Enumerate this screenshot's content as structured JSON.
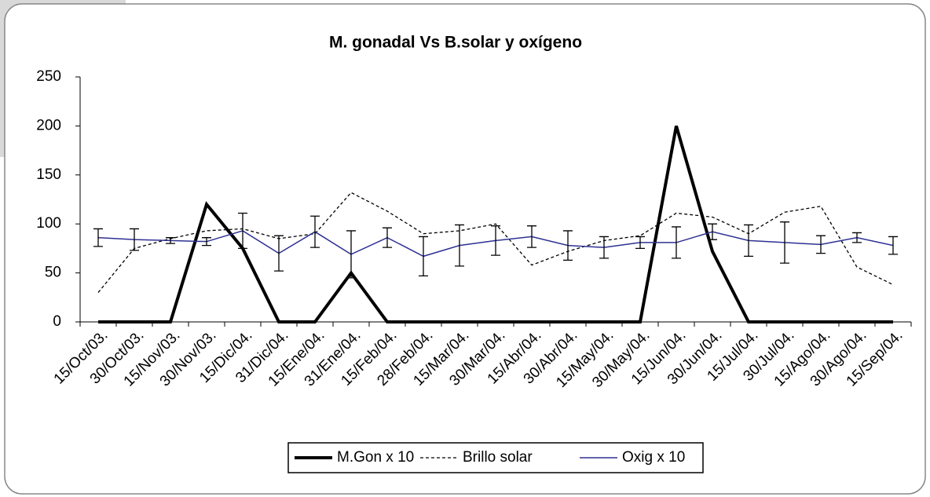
{
  "chart_data": {
    "type": "line",
    "title": "M. gonadal Vs  B.solar y oxígeno",
    "categories": [
      "15/Oct/03.",
      "30/Oct/03.",
      "15/Nov/03.",
      "30/Nov/03.",
      "15/Dic/04.",
      "31/Dic/04.",
      "15/Ene/04.",
      "31/Ene/04.",
      "15/Feb/04.",
      "28/Feb/04.",
      "15/Mar/04.",
      "30/Mar/04.",
      "15/Abr/04.",
      "30/Abr/04.",
      "15/May/04.",
      "30/May/04.",
      "15/Jun/04.",
      "30/Jun/04.",
      "15/Jul/04.",
      "30/Jul/04.",
      "15/Ago/04.",
      "30/Ago/04.",
      "15/Sep/04."
    ],
    "series": [
      {
        "name": "M.Gon x 10",
        "color": "#000000",
        "style": "solid",
        "width": 4,
        "values": [
          0,
          0,
          0,
          120,
          75,
          0,
          0,
          50,
          0,
          0,
          0,
          0,
          0,
          0,
          0,
          0,
          200,
          72,
          0,
          0,
          0,
          0,
          0
        ]
      },
      {
        "name": "Brillo solar",
        "color": "#000000",
        "style": "dashed",
        "width": 1.3,
        "values": [
          30,
          75,
          85,
          93,
          95,
          85,
          90,
          132,
          113,
          90,
          93,
          100,
          58,
          72,
          83,
          88,
          111,
          107,
          90,
          112,
          118,
          56,
          38
        ]
      },
      {
        "name": "Oxig x 10",
        "color": "#2e3192",
        "style": "solid",
        "width": 1.5,
        "values": [
          86,
          84,
          83,
          82,
          93,
          70,
          92,
          69,
          86,
          67,
          78,
          83,
          87,
          78,
          76,
          81,
          81,
          92,
          83,
          81,
          79,
          86,
          78
        ],
        "errors": [
          9,
          11,
          3,
          4,
          18,
          18,
          16,
          24,
          10,
          20,
          21,
          15,
          11,
          15,
          11,
          6,
          16,
          8,
          16,
          21,
          9,
          5,
          9
        ]
      }
    ],
    "ylim": [
      0,
      250
    ],
    "yticks": [
      0,
      50,
      100,
      150,
      200,
      250
    ],
    "legend": "bottom"
  }
}
